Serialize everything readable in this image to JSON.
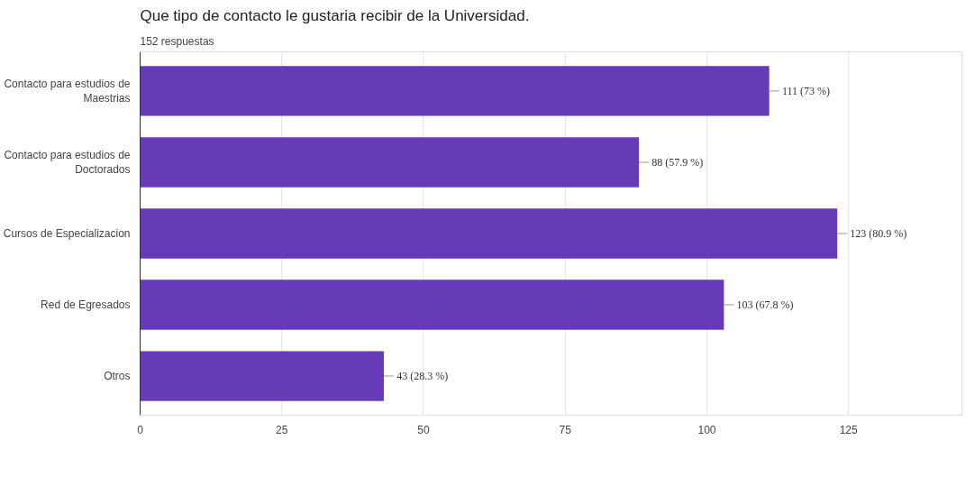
{
  "chart_data": {
    "type": "bar",
    "orientation": "horizontal",
    "title": "Que tipo de contacto le gustaria recibir de la Universidad.",
    "subtitle": "152 respuestas",
    "categories": [
      "Contacto para estudios de\nMaestrias",
      "Contacto para estudios de\nDoctorados",
      "Cursos de Especializacion",
      "Red de Egresados",
      "Otros"
    ],
    "values": [
      111,
      88,
      123,
      103,
      43
    ],
    "value_labels": [
      "111 (73 %)",
      "88 (57.9 %)",
      "123 (80.9 %)",
      "103 (67.8 %)",
      "43 (28.3 %)"
    ],
    "color": "#673ab7",
    "xlim": [
      0,
      145
    ],
    "xticks": [
      0,
      25,
      50,
      75,
      100,
      125
    ],
    "grid": "x"
  }
}
